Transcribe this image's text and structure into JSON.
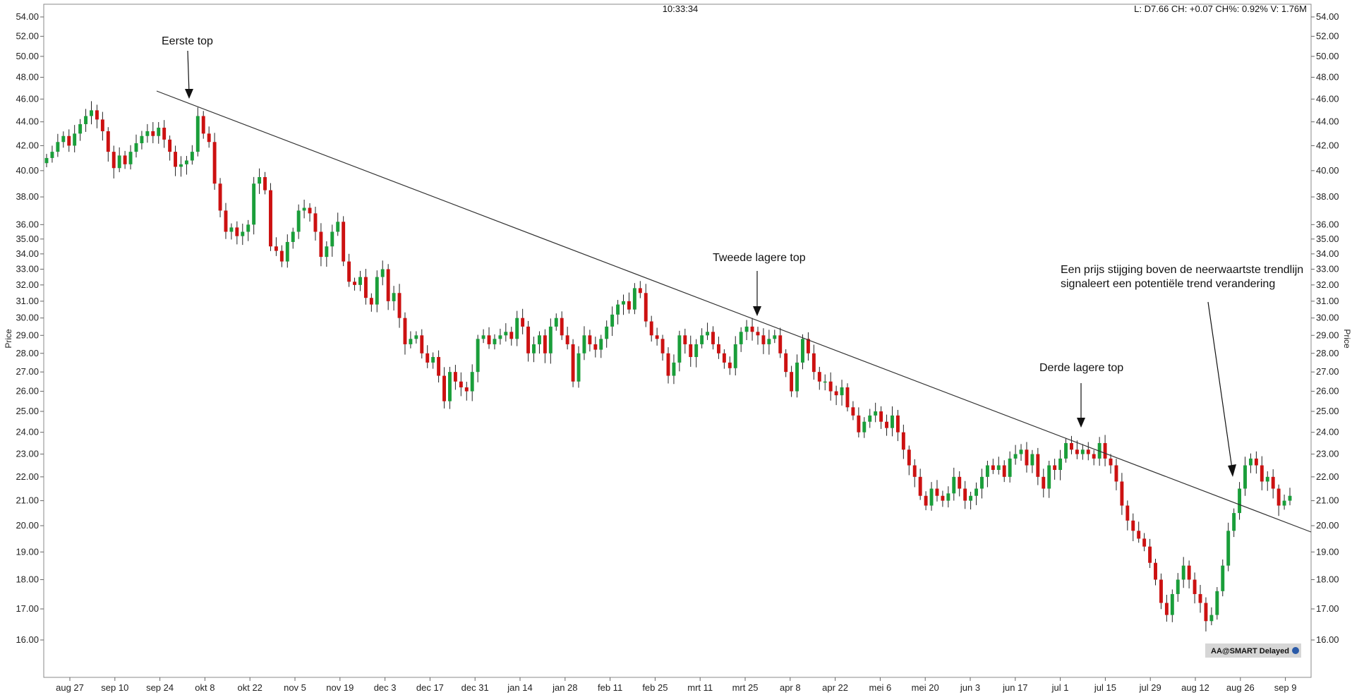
{
  "header": {
    "time": "10:33:34",
    "stats": "L: D7.66 CH: +0.07 CH%: 0.92% V: 1.76M"
  },
  "badge": {
    "label": "AA@SMART Delayed"
  },
  "colors": {
    "up": "#1a9e3a",
    "down": "#cc1111",
    "line": "#333333",
    "grid": "#bbbbbb"
  },
  "chart_data": {
    "type": "candlestick",
    "y_scale": "log",
    "ylim": [
      15.0,
      56.0
    ],
    "ylabel": "Price",
    "y_ticks": [
      "54.00",
      "52.00",
      "50.00",
      "48.00",
      "46.00",
      "44.00",
      "42.00",
      "40.00",
      "38.00",
      "36.00",
      "35.00",
      "34.00",
      "33.00",
      "32.00",
      "31.00",
      "30.00",
      "29.00",
      "28.00",
      "27.00",
      "26.00",
      "25.00",
      "24.00",
      "23.00",
      "22.00",
      "21.00",
      "20.00",
      "19.00",
      "18.00",
      "17.00",
      "16.00"
    ],
    "x_ticks": [
      "aug 27",
      "sep 10",
      "sep 24",
      "okt 8",
      "okt 22",
      "nov 5",
      "nov 19",
      "dec 3",
      "dec 17",
      "dec 31",
      "jan 14",
      "jan 28",
      "feb 11",
      "feb 25",
      "mrt 11",
      "mrt 25",
      "apr 8",
      "apr 22",
      "mei 6",
      "mei 20",
      "jun 3",
      "jun 17",
      "jul 1",
      "jul 15",
      "jul 29",
      "aug 12",
      "aug 26",
      "sep 9"
    ],
    "closes": [
      41.0,
      41.5,
      42.3,
      42.8,
      42.0,
      43.0,
      43.8,
      44.5,
      45.0,
      44.2,
      43.2,
      41.5,
      40.2,
      41.2,
      40.5,
      41.5,
      42.2,
      42.8,
      43.2,
      42.8,
      43.5,
      42.5,
      41.5,
      40.3,
      40.5,
      40.8,
      41.5,
      44.5,
      43.0,
      42.3,
      39.0,
      37.0,
      35.5,
      35.8,
      35.2,
      35.5,
      36.0,
      39.0,
      39.5,
      38.5,
      34.5,
      34.2,
      33.5,
      34.8,
      35.5,
      37.0,
      37.2,
      36.8,
      35.5,
      33.8,
      34.5,
      35.5,
      36.2,
      33.5,
      32.2,
      32.0,
      32.5,
      31.2,
      30.8,
      32.5,
      33.0,
      31.0,
      31.5,
      30.0,
      28.5,
      28.8,
      29.0,
      28.0,
      27.5,
      27.8,
      26.8,
      25.5,
      27.0,
      26.5,
      26.2,
      26.0,
      27.0,
      28.8,
      29.0,
      28.5,
      28.8,
      29.0,
      29.2,
      28.8,
      30.0,
      29.5,
      28.0,
      28.5,
      29.0,
      28.0,
      29.5,
      30.0,
      29.0,
      28.5,
      26.5,
      28.0,
      29.0,
      28.5,
      28.2,
      28.8,
      29.5,
      30.2,
      30.8,
      31.0,
      30.5,
      31.8,
      31.5,
      29.8,
      29.0,
      28.8,
      28.0,
      26.8,
      27.5,
      29.0,
      28.5,
      27.8,
      28.5,
      29.0,
      29.2,
      28.5,
      28.0,
      27.5,
      27.2,
      28.5,
      29.2,
      29.5,
      29.2,
      29.0,
      28.5,
      28.8,
      29.0,
      28.0,
      27.0,
      26.0,
      27.5,
      28.8,
      28.0,
      27.0,
      26.5,
      26.5,
      26.0,
      25.8,
      26.2,
      25.2,
      24.8,
      24.0,
      24.5,
      24.8,
      25.0,
      24.5,
      24.2,
      24.8,
      24.0,
      23.2,
      22.5,
      22.0,
      21.2,
      20.8,
      21.5,
      21.2,
      21.0,
      21.3,
      22.0,
      21.5,
      21.0,
      21.2,
      21.5,
      22.0,
      22.5,
      22.3,
      22.5,
      22.0,
      22.8,
      23.0,
      23.2,
      22.5,
      23.0,
      22.0,
      21.5,
      22.5,
      22.3,
      22.8,
      23.5,
      23.2,
      23.0,
      23.2,
      23.0,
      22.8,
      23.5,
      22.8,
      22.5,
      21.8,
      20.8,
      20.2,
      19.8,
      19.5,
      19.2,
      18.6,
      18.0,
      17.2,
      16.8,
      17.5,
      18.0,
      18.5,
      18.0,
      17.5,
      17.2,
      16.6,
      16.8,
      17.6,
      18.5,
      19.8,
      20.5,
      21.5,
      22.5,
      22.8,
      22.5,
      21.8,
      22.0,
      21.5,
      20.8,
      21.0,
      21.2
    ]
  },
  "annotations": [
    {
      "text": "Eerste top"
    },
    {
      "text": "Tweede lagere top"
    },
    {
      "text": "Derde lagere top"
    },
    {
      "text": "Een prijs stijging boven de neerwaartste trendlijn"
    },
    {
      "text": "signaleert een potentiële trend verandering"
    }
  ]
}
